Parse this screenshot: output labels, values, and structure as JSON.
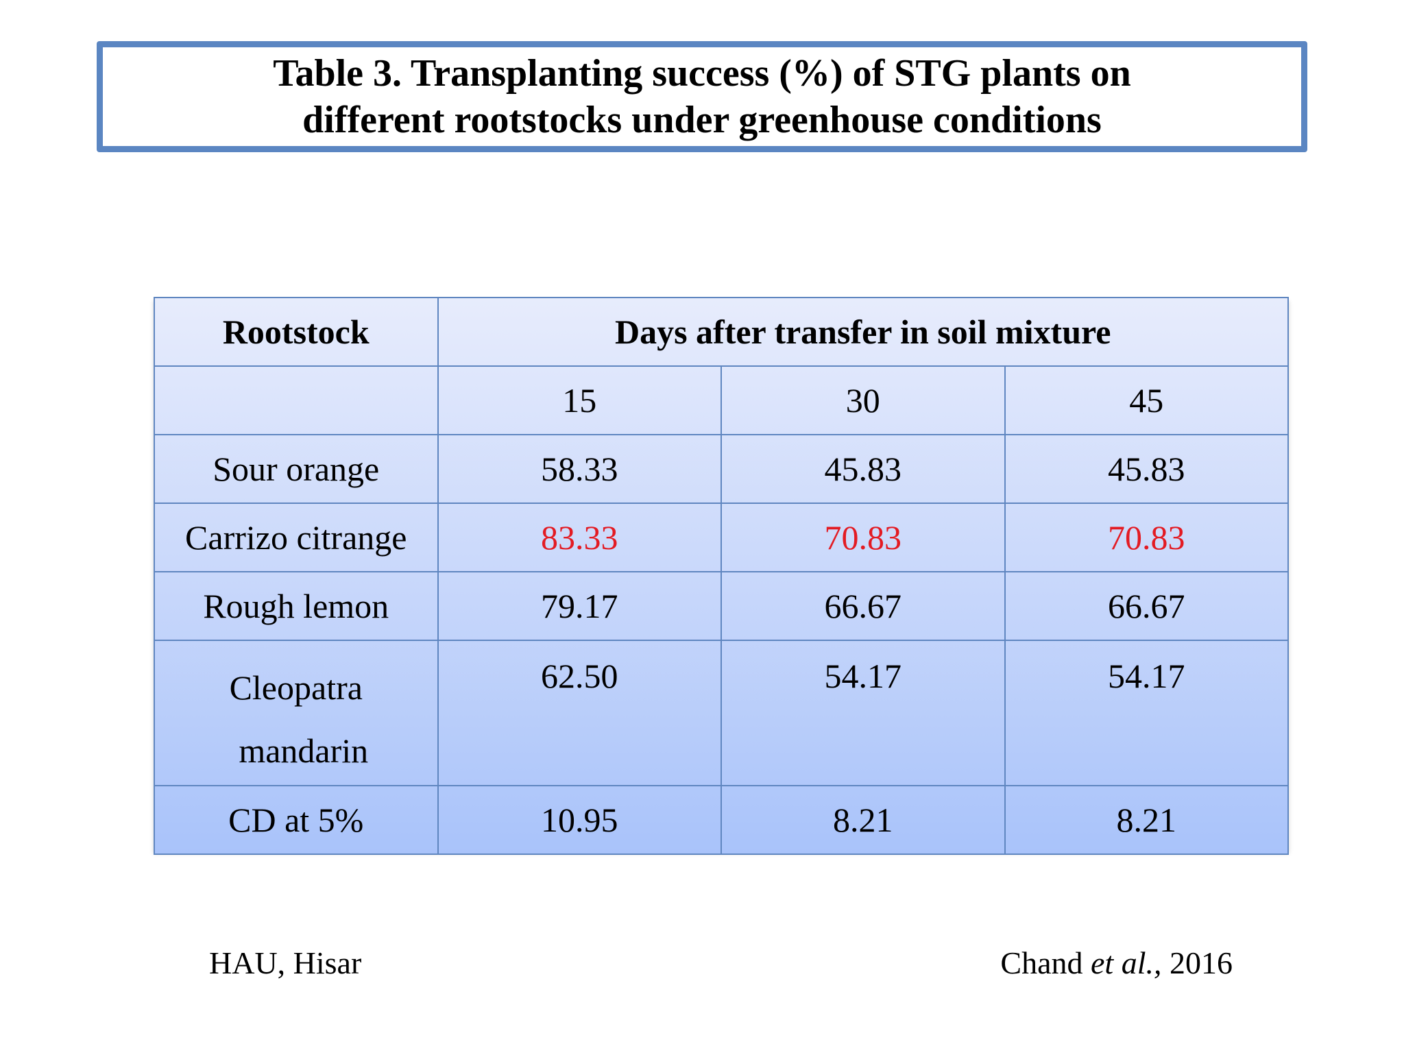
{
  "title": {
    "line1": "Table 3. Transplanting success (%) of STG plants on",
    "line2": "different rootstocks under greenhouse conditions"
  },
  "table": {
    "header": {
      "rootstock": "Rootstock",
      "days": "Days after transfer in soil mixture"
    },
    "days": [
      "15",
      "30",
      "45"
    ],
    "rows": [
      {
        "name": "Sour orange",
        "values": [
          "58.33",
          "45.83",
          "45.83"
        ]
      },
      {
        "name": "Carrizo citrange",
        "values": [
          "83.33",
          "70.83",
          "70.83"
        ],
        "highlight_color": "#e31b23"
      },
      {
        "name": "Rough lemon",
        "values": [
          "79.17",
          "66.67",
          "66.67"
        ]
      },
      {
        "name_line1": "Cleopatra",
        "name_line2": "mandarin",
        "values": [
          "62.50",
          "54.17",
          "54.17"
        ]
      }
    ],
    "cd": {
      "name": "CD at 5%",
      "values": [
        "10.95",
        "8.21",
        "8.21"
      ]
    }
  },
  "footer": {
    "left": "HAU, Hisar",
    "right_author": "Chand",
    "right_etal": "et al.,",
    "right_year": "2016"
  }
}
